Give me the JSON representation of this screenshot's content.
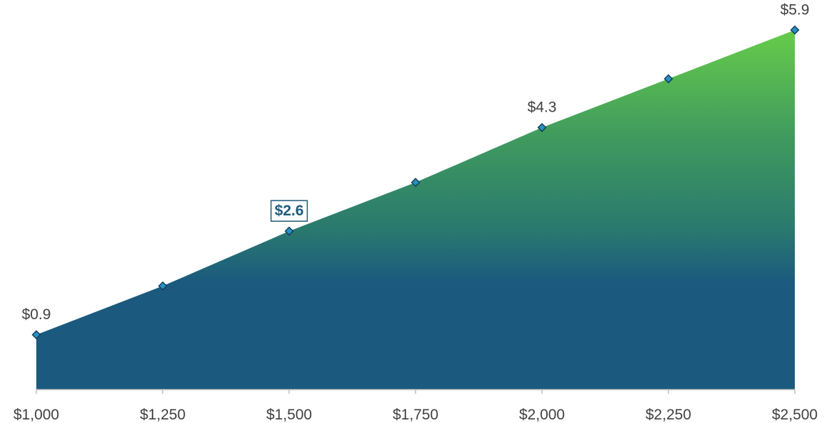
{
  "chart_data": {
    "type": "area",
    "title": "",
    "xlabel": "",
    "ylabel": "",
    "x": [
      1000,
      1250,
      1500,
      1750,
      2000,
      2250,
      2500
    ],
    "tick_labels": [
      "$1,000",
      "$1,250",
      "$1,500",
      "$1,750",
      "$2,000",
      "$2,250",
      "$2,500"
    ],
    "series": [
      {
        "values": [
          0.9,
          1.7,
          2.6,
          3.4,
          4.3,
          5.1,
          5.9
        ]
      }
    ],
    "data_labels": [
      {
        "index": 0,
        "text": "$0.9",
        "highlight": false
      },
      {
        "index": 2,
        "text": "$2.6",
        "highlight": true
      },
      {
        "index": 4,
        "text": "$4.3",
        "highlight": false
      },
      {
        "index": 6,
        "text": "$5.9",
        "highlight": false
      }
    ],
    "xlim": [
      1000,
      2500
    ],
    "ylim": [
      0,
      6.3
    ],
    "grid": false,
    "legend": "none",
    "colors": {
      "area_top": "#66cc4a",
      "area_bottom": "#1b5a7e",
      "marker_fill": "#2a8fc0",
      "marker_stroke": "#123a55",
      "axis": "#bfbfbf",
      "label_highlight": "#1f5a7a",
      "label": "#404040"
    }
  }
}
